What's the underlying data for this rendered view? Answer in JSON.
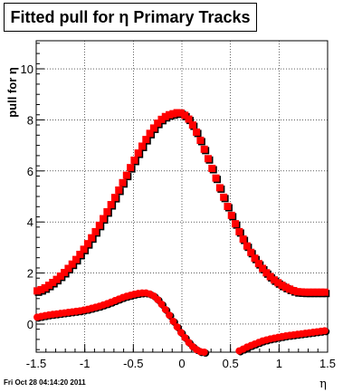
{
  "chart_data": {
    "type": "scatter",
    "title": "Fitted pull for η  Primary Tracks",
    "xlabel": "η",
    "ylabel": "pull for η",
    "xlim": [
      -1.5,
      1.5
    ],
    "ylim": [
      -1.1,
      11.1
    ],
    "x_ticks": [
      "-1.5",
      "-1",
      "-0.5",
      "0",
      "0.5",
      "1",
      "1.5"
    ],
    "x_tick_values": [
      -1.5,
      -1,
      -0.5,
      0,
      0.5,
      1,
      1.5
    ],
    "y_ticks": [
      "0",
      "2",
      "4",
      "6",
      "8",
      "10"
    ],
    "y_tick_values": [
      0,
      2,
      4,
      6,
      8,
      10
    ],
    "grid": true,
    "colors": {
      "black": "#000000",
      "red": "#ff0000"
    },
    "series": [
      {
        "marker": "square",
        "color": "#ff0000",
        "x": [
          -1.49,
          -1.45,
          -1.41,
          -1.37,
          -1.33,
          -1.29,
          -1.25,
          -1.21,
          -1.17,
          -1.13,
          -1.09,
          -1.05,
          -1.01,
          -0.97,
          -0.93,
          -0.89,
          -0.85,
          -0.81,
          -0.77,
          -0.73,
          -0.69,
          -0.65,
          -0.61,
          -0.57,
          -0.53,
          -0.49,
          -0.45,
          -0.41,
          -0.37,
          -0.33,
          -0.29,
          -0.25,
          -0.21,
          -0.17,
          -0.13,
          -0.09,
          -0.05,
          -0.01,
          0.03,
          0.07,
          0.11,
          0.15,
          0.19,
          0.23,
          0.27,
          0.31,
          0.35,
          0.39,
          0.43,
          0.47,
          0.51,
          0.55,
          0.59,
          0.63,
          0.67,
          0.71,
          0.75,
          0.79,
          0.83,
          0.87,
          0.91,
          0.95,
          0.99,
          1.03,
          1.07,
          1.11,
          1.15,
          1.19,
          1.23,
          1.27,
          1.31,
          1.35,
          1.39,
          1.43,
          1.47
        ],
        "y": [
          1.3,
          1.35,
          1.42,
          1.52,
          1.63,
          1.75,
          1.88,
          2.02,
          2.18,
          2.35,
          2.53,
          2.73,
          2.93,
          3.15,
          3.38,
          3.62,
          3.87,
          4.13,
          4.4,
          4.68,
          4.96,
          5.25,
          5.54,
          5.83,
          6.13,
          6.42,
          6.7,
          6.97,
          7.23,
          7.47,
          7.68,
          7.87,
          8.02,
          8.13,
          8.2,
          8.24,
          8.28,
          8.27,
          8.18,
          8.03,
          7.8,
          7.52,
          7.2,
          6.85,
          6.48,
          6.1,
          5.72,
          5.34,
          4.97,
          4.61,
          4.26,
          3.93,
          3.62,
          3.33,
          3.06,
          2.81,
          2.58,
          2.37,
          2.18,
          2.01,
          1.86,
          1.73,
          1.62,
          1.52,
          1.44,
          1.37,
          1.31,
          1.27,
          1.26,
          1.25,
          1.25,
          1.25,
          1.25,
          1.25,
          1.25
        ]
      },
      {
        "marker": "circle",
        "color": "#ff0000",
        "x": [
          -1.49,
          -1.45,
          -1.41,
          -1.37,
          -1.33,
          -1.29,
          -1.25,
          -1.21,
          -1.17,
          -1.13,
          -1.09,
          -1.05,
          -1.01,
          -0.97,
          -0.93,
          -0.89,
          -0.85,
          -0.81,
          -0.77,
          -0.73,
          -0.69,
          -0.65,
          -0.61,
          -0.57,
          -0.53,
          -0.49,
          -0.45,
          -0.41,
          -0.37,
          -0.33,
          -0.29,
          -0.25,
          -0.21,
          -0.17,
          -0.13,
          -0.09,
          -0.05,
          -0.01,
          0.03,
          0.07,
          0.11,
          0.15,
          0.19,
          0.23,
          0.59,
          0.63,
          0.67,
          0.71,
          0.75,
          0.79,
          0.83,
          0.87,
          0.91,
          0.95,
          0.99,
          1.03,
          1.07,
          1.11,
          1.15,
          1.19,
          1.23,
          1.27,
          1.31,
          1.35,
          1.39,
          1.43,
          1.47
        ],
        "y": [
          0.27,
          0.3,
          0.33,
          0.36,
          0.38,
          0.4,
          0.42,
          0.44,
          0.46,
          0.48,
          0.5,
          0.52,
          0.55,
          0.58,
          0.62,
          0.66,
          0.7,
          0.75,
          0.8,
          0.86,
          0.92,
          0.98,
          1.04,
          1.09,
          1.13,
          1.17,
          1.2,
          1.22,
          1.22,
          1.18,
          1.1,
          0.96,
          0.78,
          0.57,
          0.35,
          0.11,
          -0.11,
          -0.33,
          -0.53,
          -0.72,
          -0.88,
          -1.0,
          -1.08,
          -1.1,
          -1.05,
          -0.98,
          -0.9,
          -0.84,
          -0.78,
          -0.72,
          -0.66,
          -0.62,
          -0.58,
          -0.55,
          -0.52,
          -0.49,
          -0.46,
          -0.44,
          -0.42,
          -0.4,
          -0.38,
          -0.36,
          -0.34,
          -0.32,
          -0.3,
          -0.28,
          -0.26
        ]
      }
    ]
  },
  "footer_text": "Fri Oct 28 04:14:20 2011"
}
